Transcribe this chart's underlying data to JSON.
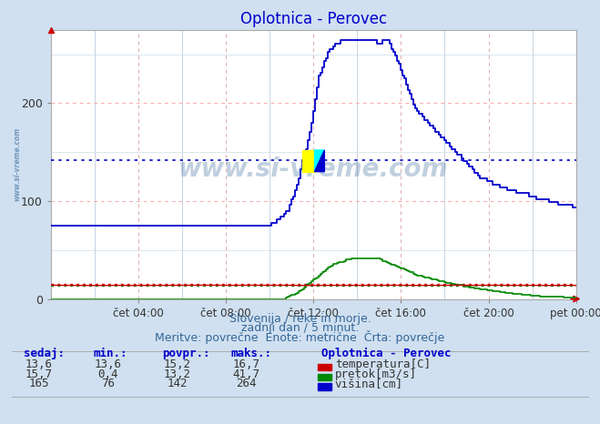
{
  "title": "Oplotnica - Perovec",
  "bg_color": "#d0e0f0",
  "plot_bg_color": "#ffffff",
  "x_labels": [
    "čet 04:00",
    "čet 08:00",
    "čet 12:00",
    "čet 16:00",
    "čet 20:00",
    "pet 00:00"
  ],
  "x_ticks": [
    48,
    96,
    144,
    192,
    240,
    288
  ],
  "x_total": 288,
  "y_max": 275,
  "y_ticks": [
    0,
    100,
    200
  ],
  "footer_line1": "Slovenija / reke in morje.",
  "footer_line2": "zadnji dan / 5 minut.",
  "footer_line3": "Meritve: povrečne  Enote: metrične  Črta: povrečje",
  "legend_title": "Oplotnica - Perovec",
  "legend_items": [
    {
      "label": "temperatura[C]",
      "color": "#cc0000"
    },
    {
      "label": "pretok[m3/s]",
      "color": "#008800"
    },
    {
      "label": "višina[cm]",
      "color": "#0000cc"
    }
  ],
  "table_headers": [
    "sedaj:",
    "min.:",
    "povpr.:",
    "maks.:"
  ],
  "table_rows": [
    [
      "13,6",
      "13,6",
      "15,2",
      "16,7"
    ],
    [
      "15,7",
      "0,4",
      "13,2",
      "41,7"
    ],
    [
      "165",
      "76",
      "142",
      "264"
    ]
  ],
  "temp_color": "#cc0000",
  "flow_color": "#008800",
  "height_color": "#0000cc",
  "avg_height": 142,
  "avg_temp": 15.2,
  "avg_flow": 13.2,
  "watermark_color": "#336699",
  "vertical_grid_color": "#ddbbbb",
  "horizontal_grid_color": "#ffcccc",
  "minor_grid_color": "#ccccdd"
}
